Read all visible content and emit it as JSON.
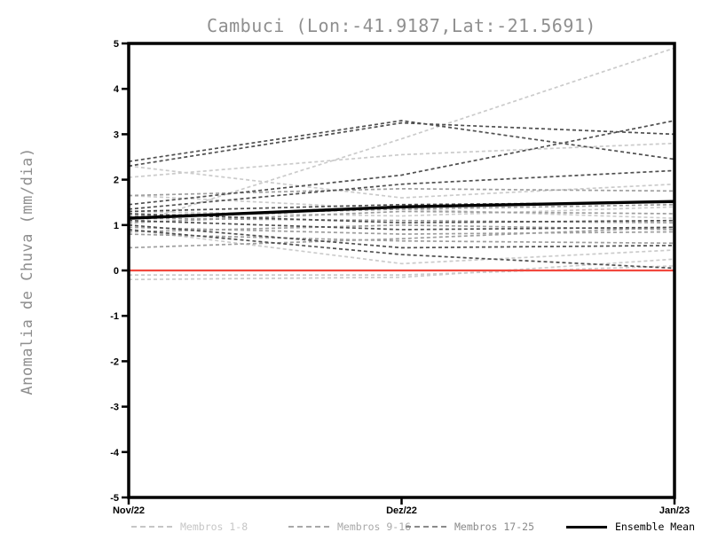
{
  "title": "Cambuci (Lon:-41.9187,Lat:-21.5691)",
  "ylabel": "Anomalia de Chuva (mm/dia)",
  "legend": [
    {
      "label": "Membros 1-8",
      "color": "#c6c6c6",
      "line_color": "#cbcbcb",
      "style": "dashed"
    },
    {
      "label": "Membros 9-16",
      "color": "#a9a9a9",
      "line_color": "#9e9e9e",
      "style": "dashed"
    },
    {
      "label": "Membros 17-25",
      "color": "#8a8a8a",
      "line_color": "#4f4f4f",
      "style": "dashed"
    },
    {
      "label": "Ensemble Mean",
      "color": "#000000",
      "line_color": "#000000",
      "style": "solid"
    }
  ],
  "chart_data": {
    "type": "line",
    "title": "Cambuci (Lon:-41.9187,Lat:-21.5691)",
    "xlabel": "",
    "ylabel": "Anomalia de Chuva (mm/dia)",
    "x": [
      "Nov/22",
      "Dez/22",
      "Jan/23"
    ],
    "ylim": [
      -5,
      5
    ],
    "y_ticks": [
      5,
      4,
      3,
      2,
      1,
      0,
      -1,
      -2,
      -3,
      -4,
      -5
    ],
    "grid": false,
    "legend_position": "bottom",
    "series_groups": [
      {
        "name": "Membros 1-8",
        "color": "#cbcbcb",
        "dash": true,
        "members": [
          [
            1.0,
            2.9,
            4.9
          ],
          [
            2.3,
            1.6,
            1.9
          ],
          [
            2.05,
            2.55,
            2.8
          ],
          [
            1.65,
            1.35,
            1.15
          ],
          [
            1.3,
            1.2,
            1.4
          ],
          [
            0.9,
            0.15,
            0.45
          ],
          [
            -0.1,
            -0.1,
            0.1
          ],
          [
            -0.2,
            -0.15,
            0.25
          ]
        ]
      },
      {
        "name": "Membros 9-16",
        "color": "#9e9e9e",
        "dash": true,
        "members": [
          [
            1.65,
            1.8,
            1.75
          ],
          [
            1.2,
            1.35,
            1.45
          ],
          [
            1.15,
            1.1,
            1.05
          ],
          [
            1.05,
            1.3,
            1.25
          ],
          [
            0.95,
            0.8,
            0.85
          ],
          [
            0.85,
            1.0,
            0.9
          ],
          [
            0.8,
            0.65,
            0.6
          ],
          [
            0.5,
            0.7,
            0.95
          ]
        ]
      },
      {
        "name": "Membros 17-25",
        "color": "#4f4f4f",
        "dash": true,
        "members": [
          [
            2.4,
            3.3,
            2.45
          ],
          [
            2.3,
            3.25,
            3.0
          ],
          [
            1.45,
            2.1,
            3.3
          ],
          [
            1.35,
            1.9,
            2.2
          ],
          [
            1.3,
            1.45,
            1.5
          ],
          [
            1.25,
            1.05,
            1.1
          ],
          [
            1.1,
            0.9,
            0.95
          ],
          [
            1.0,
            0.5,
            0.55
          ],
          [
            0.9,
            0.35,
            0.05
          ]
        ]
      }
    ],
    "mean_series": {
      "name": "Ensemble Mean",
      "color": "#000000",
      "values": [
        1.15,
        1.4,
        1.52
      ]
    },
    "zero_line": {
      "value": 0,
      "color": "#f2483e"
    },
    "axis_color": "#000000"
  }
}
